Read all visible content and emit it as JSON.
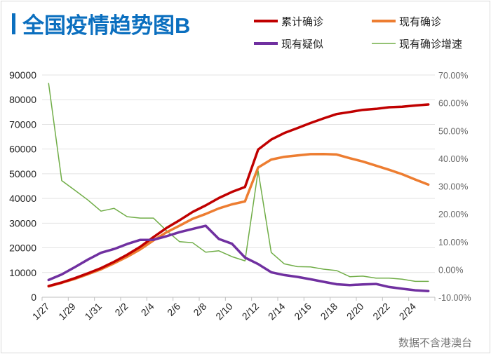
{
  "chart_data": {
    "type": "line",
    "title": "全国疫情趋势图B",
    "footnote": "数据不含港澳台",
    "categories": [
      "1/27",
      "1/28",
      "1/29",
      "1/30",
      "1/31",
      "2/1",
      "2/2",
      "2/3",
      "2/4",
      "2/5",
      "2/6",
      "2/7",
      "2/8",
      "2/9",
      "2/10",
      "2/11",
      "2/12",
      "2/13",
      "2/14",
      "2/15",
      "2/16",
      "2/17",
      "2/18",
      "2/19",
      "2/20",
      "2/21",
      "2/22",
      "2/23",
      "2/24",
      "2/25"
    ],
    "x_tick_labels": [
      "1/27",
      "1/29",
      "1/31",
      "2/2",
      "2/4",
      "2/6",
      "2/8",
      "2/10",
      "2/12",
      "2/14",
      "2/16",
      "2/18",
      "2/20",
      "2/22",
      "2/24"
    ],
    "y_left": {
      "ylim": [
        0,
        90000
      ],
      "ticks": [
        "0",
        "10000",
        "20000",
        "30000",
        "40000",
        "50000",
        "60000",
        "70000",
        "80000",
        "90000"
      ]
    },
    "y_right": {
      "ylim": [
        -10,
        70
      ],
      "unit": "%",
      "ticks": [
        "-10.00%",
        "0.00%",
        "10.00%",
        "20.00%",
        "30.00%",
        "40.00%",
        "50.00%",
        "60.00%",
        "70.00%"
      ]
    },
    "grid": true,
    "legend_position": "top-right",
    "series": [
      {
        "name": "累计确诊",
        "color": "#c00000",
        "axis": "left",
        "width": 3.5,
        "values": [
          4515,
          5974,
          7711,
          9692,
          11791,
          14380,
          17205,
          20438,
          24324,
          28018,
          31161,
          34546,
          37198,
          40171,
          42638,
          44653,
          59804,
          63851,
          66492,
          68500,
          70548,
          72436,
          74185,
          75002,
          75891,
          76288,
          76936,
          77150,
          77658,
          78064
        ]
      },
      {
        "name": "现有确诊",
        "color": "#ed7d31",
        "axis": "left",
        "width": 3.5,
        "values": [
          4409,
          5806,
          7427,
          9308,
          11289,
          13748,
          16369,
          19381,
          23008,
          26302,
          28985,
          31774,
          33738,
          35982,
          37626,
          38800,
          52526,
          55748,
          56873,
          57416,
          57934,
          58016,
          57805,
          56303,
          54965,
          53284,
          51606,
          49824,
          47672,
          45604
        ]
      },
      {
        "name": "现有疑似",
        "color": "#7030a0",
        "axis": "left",
        "width": 3.5,
        "values": [
          6973,
          9239,
          12167,
          15238,
          17988,
          19544,
          21558,
          23214,
          23260,
          24702,
          26359,
          27657,
          28942,
          23589,
          21675,
          16067,
          13435,
          10109,
          8969,
          8228,
          7264,
          6242,
          5248,
          4922,
          5206,
          5365,
          4148,
          3434,
          2824,
          2491
        ]
      },
      {
        "name": "现有确诊增速",
        "color": "#70ad47",
        "axis": "right",
        "width": 1.5,
        "values": [
          67,
          32,
          28.5,
          25,
          21,
          22,
          19,
          18.5,
          18.5,
          14,
          10,
          9.6,
          6.2,
          6.7,
          4.6,
          3.1,
          35.5,
          6.1,
          2.0,
          1.0,
          0.9,
          0.1,
          -0.4,
          -2.6,
          -2.4,
          -3.1,
          -3.1,
          -3.5,
          -4.3,
          -4.3
        ]
      }
    ]
  }
}
